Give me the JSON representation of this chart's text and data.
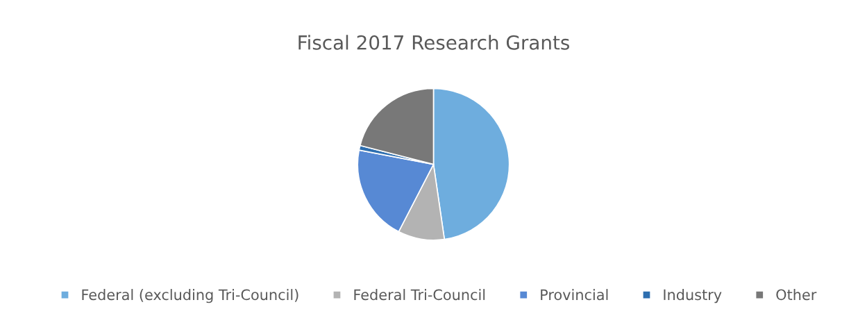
{
  "chart_data": {
    "type": "pie",
    "title": "Fiscal 2017 Research Grants",
    "categories": [
      "Federal (excluding Tri-Council)",
      "Federal Tri-Council",
      "Provincial",
      "Industry",
      "Other"
    ],
    "values": [
      47.7,
      9.9,
      20.4,
      1.0,
      21.0
    ],
    "colors": [
      "#6eadde",
      "#b3b3b3",
      "#5789d4",
      "#2e6fb0",
      "#787878"
    ],
    "legend": "bottom"
  }
}
